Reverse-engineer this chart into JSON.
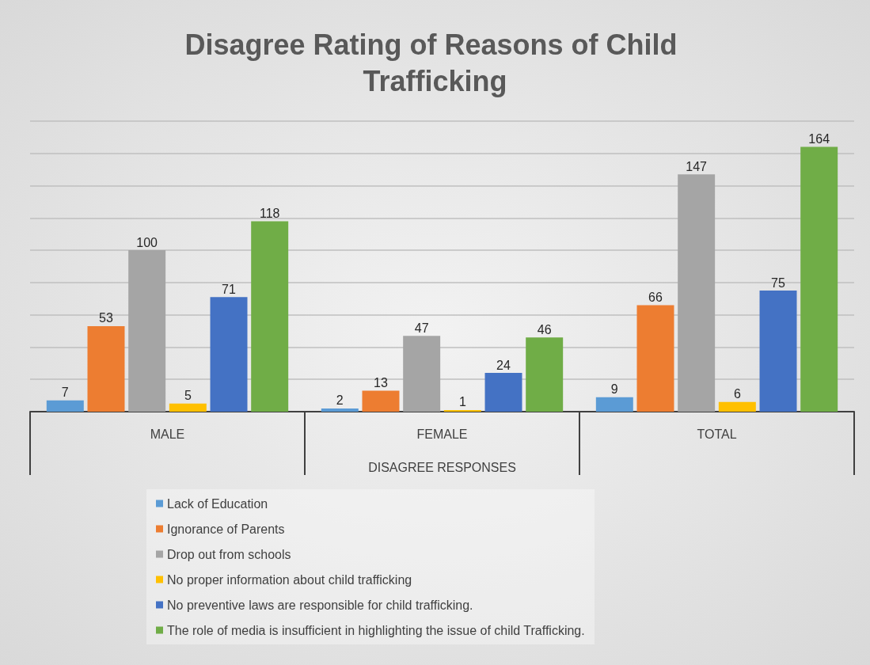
{
  "chart_data": {
    "type": "bar",
    "title": "Disagree Rating of Reasons of Child Trafficking",
    "xlabel": "DISAGREE RESPONSES",
    "categories": [
      "MALE",
      "FEMALE",
      "TOTAL"
    ],
    "series": [
      {
        "name": "Lack of Education",
        "color": "#5b9bd5",
        "values": [
          7,
          2,
          9
        ]
      },
      {
        "name": "Ignorance of Parents",
        "color": "#ed7d31",
        "values": [
          53,
          13,
          66
        ]
      },
      {
        "name": "Drop out from schools",
        "color": "#a5a5a5",
        "values": [
          100,
          47,
          147
        ]
      },
      {
        "name": "No proper information about child trafficking",
        "color": "#ffc000",
        "values": [
          5,
          1,
          6
        ]
      },
      {
        "name": "No preventive laws are responsible for child trafficking.",
        "color": "#4472c4",
        "values": [
          71,
          24,
          75
        ]
      },
      {
        "name": "The role of media is insufficient in highlighting the issue of child Trafficking.",
        "color": "#70ad47",
        "values": [
          118,
          46,
          164
        ]
      }
    ],
    "ylim": [
      0,
      180
    ],
    "yticks": [
      {
        "value": 0,
        "label": null
      },
      {
        "value": 20,
        "label": null
      },
      {
        "value": 40,
        "label": null
      },
      {
        "value": 60,
        "label": null
      },
      {
        "value": 80,
        "label": null
      },
      {
        "value": 100,
        "label": null
      },
      {
        "value": 120,
        "label": null
      },
      {
        "value": 140,
        "label": null
      },
      {
        "value": 160,
        "label": null
      },
      {
        "value": 180,
        "label": null
      }
    ],
    "tick_labels": "x",
    "grid": "y",
    "legend": "bottom",
    "data_labels": true
  }
}
